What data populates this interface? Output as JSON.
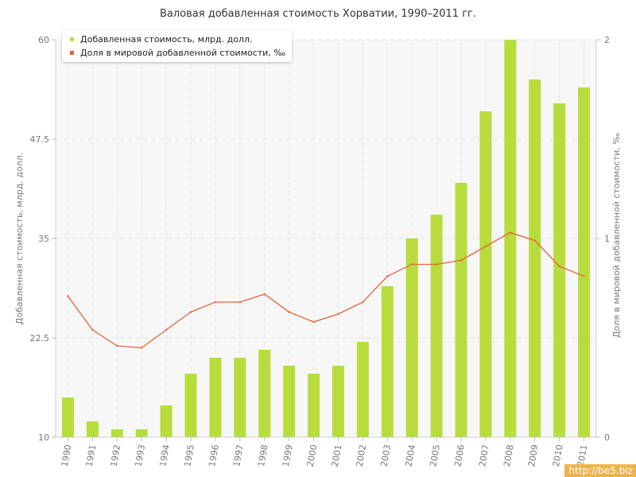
{
  "chart_data": {
    "type": "bar",
    "title": "Валовая добавленная стоимость Хорватии, 1990–2011 гг.",
    "ylabel": "Добавленная стоимость, млрд. долл.",
    "y2label": "Доля в мировой добавленной стоимости, ‰",
    "ylim": [
      10,
      60
    ],
    "y2lim": [
      0,
      2
    ],
    "yticks": [
      "10",
      "22.5",
      "35",
      "47.5",
      "60"
    ],
    "y2ticks": [
      "0",
      "1",
      "2"
    ],
    "grid": true,
    "legend_position": "top-left",
    "categories": [
      "1990",
      "1991",
      "1992",
      "1993",
      "1994",
      "1995",
      "1996",
      "1997",
      "1998",
      "1999",
      "2000",
      "2001",
      "2002",
      "2003",
      "2004",
      "2005",
      "2006",
      "2007",
      "2008",
      "2009",
      "2010",
      "2011"
    ],
    "series": [
      {
        "name": "Добавленная стоимость, млрд. долл.",
        "kind": "bar",
        "axis": "left",
        "color": "#b8dc3c",
        "values": [
          15,
          12,
          11,
          11,
          14,
          18,
          20,
          20,
          21,
          19,
          18,
          19,
          22,
          29,
          35,
          38,
          42,
          51,
          60,
          55,
          52,
          54
        ]
      },
      {
        "name": "Доля в мировой добавленной стоимости, ‰",
        "kind": "line",
        "axis": "right",
        "color": "#e8623a",
        "values": [
          0.71,
          0.54,
          0.46,
          0.45,
          0.54,
          0.63,
          0.68,
          0.68,
          0.72,
          0.63,
          0.58,
          0.62,
          0.68,
          0.81,
          0.87,
          0.87,
          0.89,
          0.96,
          1.03,
          0.99,
          0.86,
          0.81
        ]
      }
    ]
  },
  "watermark": "http://be5.biz"
}
